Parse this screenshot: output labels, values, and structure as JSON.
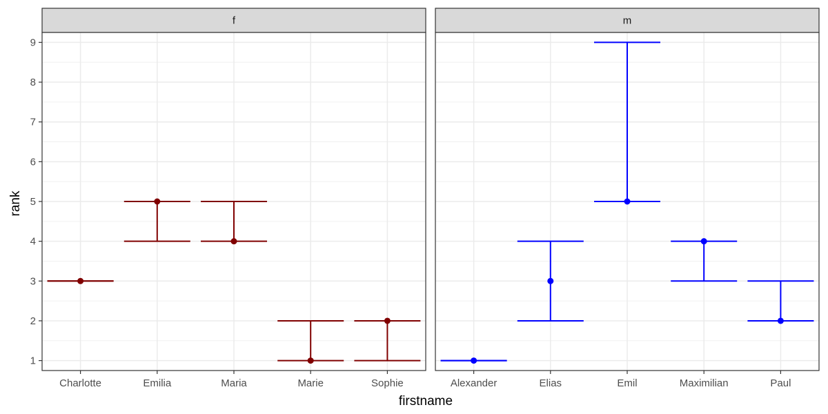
{
  "chart_data": {
    "type": "errorbar",
    "facet_by": "sex",
    "xlabel": "firstname",
    "ylabel": "rank",
    "ylim": [
      0.75,
      9.25
    ],
    "yticks": [
      1,
      2,
      3,
      4,
      5,
      6,
      7,
      8,
      9
    ],
    "grid": true,
    "panels": [
      {
        "strip": "f",
        "color": "#800000",
        "categories": [
          "Charlotte",
          "Emilia",
          "Maria",
          "Marie",
          "Sophie"
        ],
        "points": [
          3,
          5,
          4,
          1,
          2
        ],
        "lower": [
          3,
          4,
          4,
          1,
          1
        ],
        "upper": [
          3,
          5,
          5,
          2,
          2
        ]
      },
      {
        "strip": "m",
        "color": "#0000ff",
        "categories": [
          "Alexander",
          "Elias",
          "Emil",
          "Maximilian",
          "Paul"
        ],
        "points": [
          1,
          3,
          5,
          4,
          2
        ],
        "lower": [
          1,
          2,
          5,
          3,
          2
        ],
        "upper": [
          1,
          4,
          9,
          4,
          3
        ]
      }
    ]
  }
}
